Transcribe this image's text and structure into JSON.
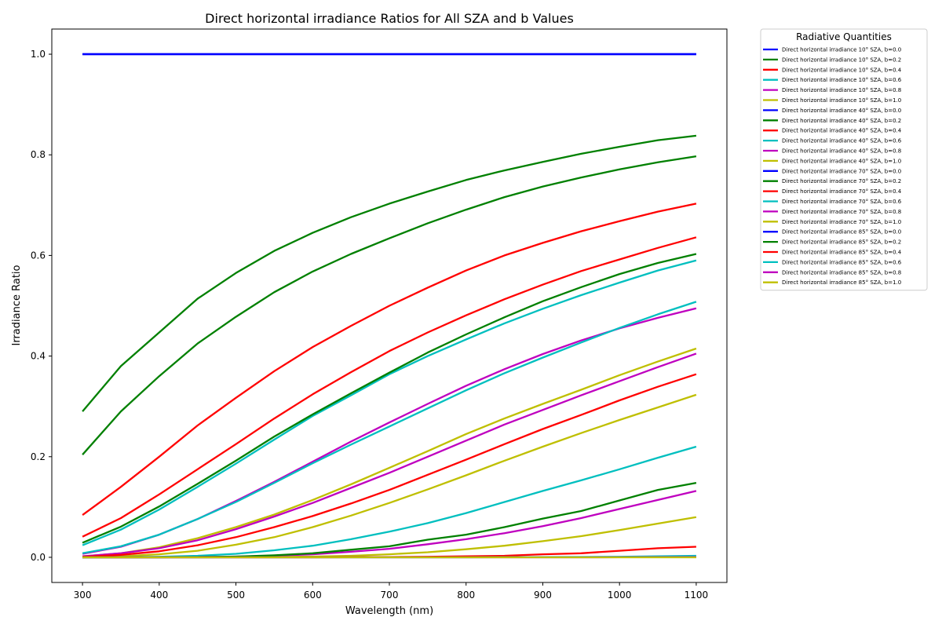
{
  "chart_data": {
    "type": "line",
    "title": "Direct horizontal irradiance Ratios for All SZA and b Values",
    "xlabel": "Wavelength (nm)",
    "ylabel": "Irradiance Ratio",
    "xlim": [
      260,
      1140
    ],
    "ylim": [
      -0.05,
      1.05
    ],
    "xticks": [
      300,
      400,
      500,
      600,
      700,
      800,
      900,
      1000,
      1100
    ],
    "yticks": [
      0.0,
      0.2,
      0.4,
      0.6,
      0.8,
      1.0
    ],
    "grid": false,
    "legend": {
      "title": "Radiative Quantities",
      "placement": "outside-right-top"
    },
    "x": [
      300,
      350,
      400,
      450,
      500,
      550,
      600,
      650,
      700,
      750,
      800,
      850,
      900,
      950,
      1000,
      1050,
      1100
    ],
    "series": [
      {
        "name": "Direct horizontal irradiance 10° SZA, b=0.0",
        "color": "#0000ff",
        "values": [
          1.0,
          1.0,
          1.0,
          1.0,
          1.0,
          1.0,
          1.0,
          1.0,
          1.0,
          1.0,
          1.0,
          1.0,
          1.0,
          1.0,
          1.0,
          1.0,
          1.0
        ]
      },
      {
        "name": "Direct horizontal irradiance 10° SZA, b=0.2",
        "color": "#008000",
        "values": [
          0.29,
          0.38,
          0.447,
          0.514,
          0.565,
          0.609,
          0.645,
          0.676,
          0.703,
          0.727,
          0.75,
          0.769,
          0.786,
          0.802,
          0.816,
          0.829,
          0.838
        ]
      },
      {
        "name": "Direct horizontal irradiance 10° SZA, b=0.4",
        "color": "#ff0000",
        "values": [
          0.084,
          0.14,
          0.2,
          0.262,
          0.317,
          0.37,
          0.418,
          0.46,
          0.5,
          0.536,
          0.57,
          0.6,
          0.625,
          0.648,
          0.668,
          0.687,
          0.703
        ]
      },
      {
        "name": "Direct horizontal irradiance 10° SZA, b=0.6",
        "color": "#00bfbf",
        "values": [
          0.024,
          0.055,
          0.095,
          0.14,
          0.186,
          0.234,
          0.281,
          0.322,
          0.364,
          0.4,
          0.433,
          0.465,
          0.494,
          0.521,
          0.546,
          0.57,
          0.59
        ]
      },
      {
        "name": "Direct horizontal irradiance 10° SZA, b=0.8",
        "color": "#bf00bf",
        "values": [
          0.007,
          0.021,
          0.045,
          0.076,
          0.112,
          0.15,
          0.19,
          0.23,
          0.268,
          0.305,
          0.341,
          0.374,
          0.404,
          0.431,
          0.455,
          0.476,
          0.495
        ]
      },
      {
        "name": "Direct horizontal irradiance 10° SZA, b=1.0",
        "color": "#bfbf00",
        "values": [
          0.002,
          0.008,
          0.02,
          0.038,
          0.06,
          0.085,
          0.114,
          0.145,
          0.178,
          0.211,
          0.245,
          0.276,
          0.305,
          0.333,
          0.362,
          0.389,
          0.415
        ]
      },
      {
        "name": "Direct horizontal irradiance 40° SZA, b=0.0",
        "color": "#0000ff",
        "values": [
          1.0,
          1.0,
          1.0,
          1.0,
          1.0,
          1.0,
          1.0,
          1.0,
          1.0,
          1.0,
          1.0,
          1.0,
          1.0,
          1.0,
          1.0,
          1.0,
          1.0
        ]
      },
      {
        "name": "Direct horizontal irradiance 40° SZA, b=0.2",
        "color": "#008000",
        "values": [
          0.204,
          0.29,
          0.36,
          0.425,
          0.478,
          0.527,
          0.568,
          0.603,
          0.634,
          0.664,
          0.691,
          0.716,
          0.737,
          0.755,
          0.771,
          0.785,
          0.797
        ]
      },
      {
        "name": "Direct horizontal irradiance 40° SZA, b=0.4",
        "color": "#ff0000",
        "values": [
          0.041,
          0.078,
          0.125,
          0.175,
          0.225,
          0.276,
          0.324,
          0.368,
          0.41,
          0.447,
          0.481,
          0.513,
          0.542,
          0.569,
          0.592,
          0.615,
          0.636
        ]
      },
      {
        "name": "Direct horizontal irradiance 40° SZA, b=0.6",
        "color": "#00bfbf",
        "values": [
          0.008,
          0.022,
          0.045,
          0.076,
          0.11,
          0.148,
          0.187,
          0.224,
          0.26,
          0.296,
          0.332,
          0.366,
          0.397,
          0.427,
          0.456,
          0.483,
          0.508
        ]
      },
      {
        "name": "Direct horizontal irradiance 40° SZA, b=0.8",
        "color": "#bf00bf",
        "values": [
          0.002,
          0.008,
          0.018,
          0.034,
          0.056,
          0.081,
          0.108,
          0.138,
          0.168,
          0.2,
          0.232,
          0.264,
          0.293,
          0.322,
          0.35,
          0.378,
          0.405
        ]
      },
      {
        "name": "Direct horizontal irradiance 40° SZA, b=1.0",
        "color": "#bfbf00",
        "values": [
          0.0005,
          0.002,
          0.006,
          0.013,
          0.025,
          0.04,
          0.06,
          0.083,
          0.108,
          0.135,
          0.163,
          0.192,
          0.22,
          0.247,
          0.273,
          0.298,
          0.323
        ]
      },
      {
        "name": "Direct horizontal irradiance 70° SZA, b=0.0",
        "color": "#0000ff",
        "values": [
          1.0,
          1.0,
          1.0,
          1.0,
          1.0,
          1.0,
          1.0,
          1.0,
          1.0,
          1.0,
          1.0,
          1.0,
          1.0,
          1.0,
          1.0,
          1.0,
          1.0
        ]
      },
      {
        "name": "Direct horizontal irradiance 70° SZA, b=0.2",
        "color": "#008000",
        "values": [
          0.029,
          0.061,
          0.101,
          0.146,
          0.192,
          0.24,
          0.284,
          0.326,
          0.367,
          0.407,
          0.443,
          0.477,
          0.509,
          0.537,
          0.563,
          0.585,
          0.603
        ]
      },
      {
        "name": "Direct horizontal irradiance 70° SZA, b=0.4",
        "color": "#ff0000",
        "values": [
          0.001,
          0.005,
          0.012,
          0.024,
          0.04,
          0.06,
          0.082,
          0.107,
          0.134,
          0.164,
          0.194,
          0.225,
          0.255,
          0.283,
          0.312,
          0.339,
          0.364
        ]
      },
      {
        "name": "Direct horizontal irradiance 70° SZA, b=0.6",
        "color": "#00bfbf",
        "values": [
          0.0,
          0.0002,
          0.001,
          0.003,
          0.007,
          0.014,
          0.023,
          0.036,
          0.051,
          0.068,
          0.088,
          0.11,
          0.132,
          0.153,
          0.175,
          0.198,
          0.22
        ]
      },
      {
        "name": "Direct horizontal irradiance 70° SZA, b=0.8",
        "color": "#bf00bf",
        "values": [
          0.0,
          0.0,
          0.0,
          0.0005,
          0.0015,
          0.003,
          0.006,
          0.011,
          0.017,
          0.026,
          0.036,
          0.048,
          0.062,
          0.078,
          0.096,
          0.114,
          0.132
        ]
      },
      {
        "name": "Direct horizontal irradiance 70° SZA, b=1.0",
        "color": "#bfbf00",
        "values": [
          0.0,
          0.0,
          0.0,
          0.0,
          0.0002,
          0.0006,
          0.0015,
          0.003,
          0.006,
          0.01,
          0.016,
          0.023,
          0.032,
          0.042,
          0.054,
          0.067,
          0.08
        ]
      },
      {
        "name": "Direct horizontal irradiance 85° SZA, b=0.0",
        "color": "#0000ff",
        "values": [
          1.0,
          1.0,
          1.0,
          1.0,
          1.0,
          1.0,
          1.0,
          1.0,
          1.0,
          1.0,
          1.0,
          1.0,
          1.0,
          1.0,
          1.0,
          1.0,
          1.0
        ]
      },
      {
        "name": "Direct horizontal irradiance 85° SZA, b=0.2",
        "color": "#008000",
        "values": [
          0.0,
          0.0,
          0.0,
          0.0005,
          0.0015,
          0.004,
          0.008,
          0.015,
          0.022,
          0.035,
          0.045,
          0.06,
          0.077,
          0.092,
          0.113,
          0.134,
          0.148
        ]
      },
      {
        "name": "Direct horizontal irradiance 85° SZA, b=0.4",
        "color": "#ff0000",
        "values": [
          0.0,
          0.0,
          0.0,
          0.0,
          0.0,
          0.0,
          0.0,
          0.0003,
          0.0006,
          0.001,
          0.002,
          0.003,
          0.006,
          0.008,
          0.013,
          0.018,
          0.021
        ]
      },
      {
        "name": "Direct horizontal irradiance 85° SZA, b=0.6",
        "color": "#00bfbf",
        "values": [
          0.0,
          0.0,
          0.0,
          0.0,
          0.0,
          0.0,
          0.0,
          0.0,
          0.0,
          0.0,
          0.0,
          0.0002,
          0.0004,
          0.0007,
          0.001,
          0.002,
          0.003
        ]
      },
      {
        "name": "Direct horizontal irradiance 85° SZA, b=0.8",
        "color": "#bf00bf",
        "values": [
          0.0,
          0.0,
          0.0,
          0.0,
          0.0,
          0.0,
          0.0,
          0.0,
          0.0,
          0.0,
          0.0,
          0.0,
          0.0,
          0.0,
          0.0001,
          0.0002,
          0.0004
        ]
      },
      {
        "name": "Direct horizontal irradiance 85° SZA, b=1.0",
        "color": "#bfbf00",
        "values": [
          0.0,
          0.0,
          0.0,
          0.0,
          0.0,
          0.0,
          0.0,
          0.0,
          0.0,
          0.0,
          0.0,
          0.0,
          0.0,
          0.0,
          0.0,
          0.0,
          0.0
        ]
      }
    ]
  }
}
